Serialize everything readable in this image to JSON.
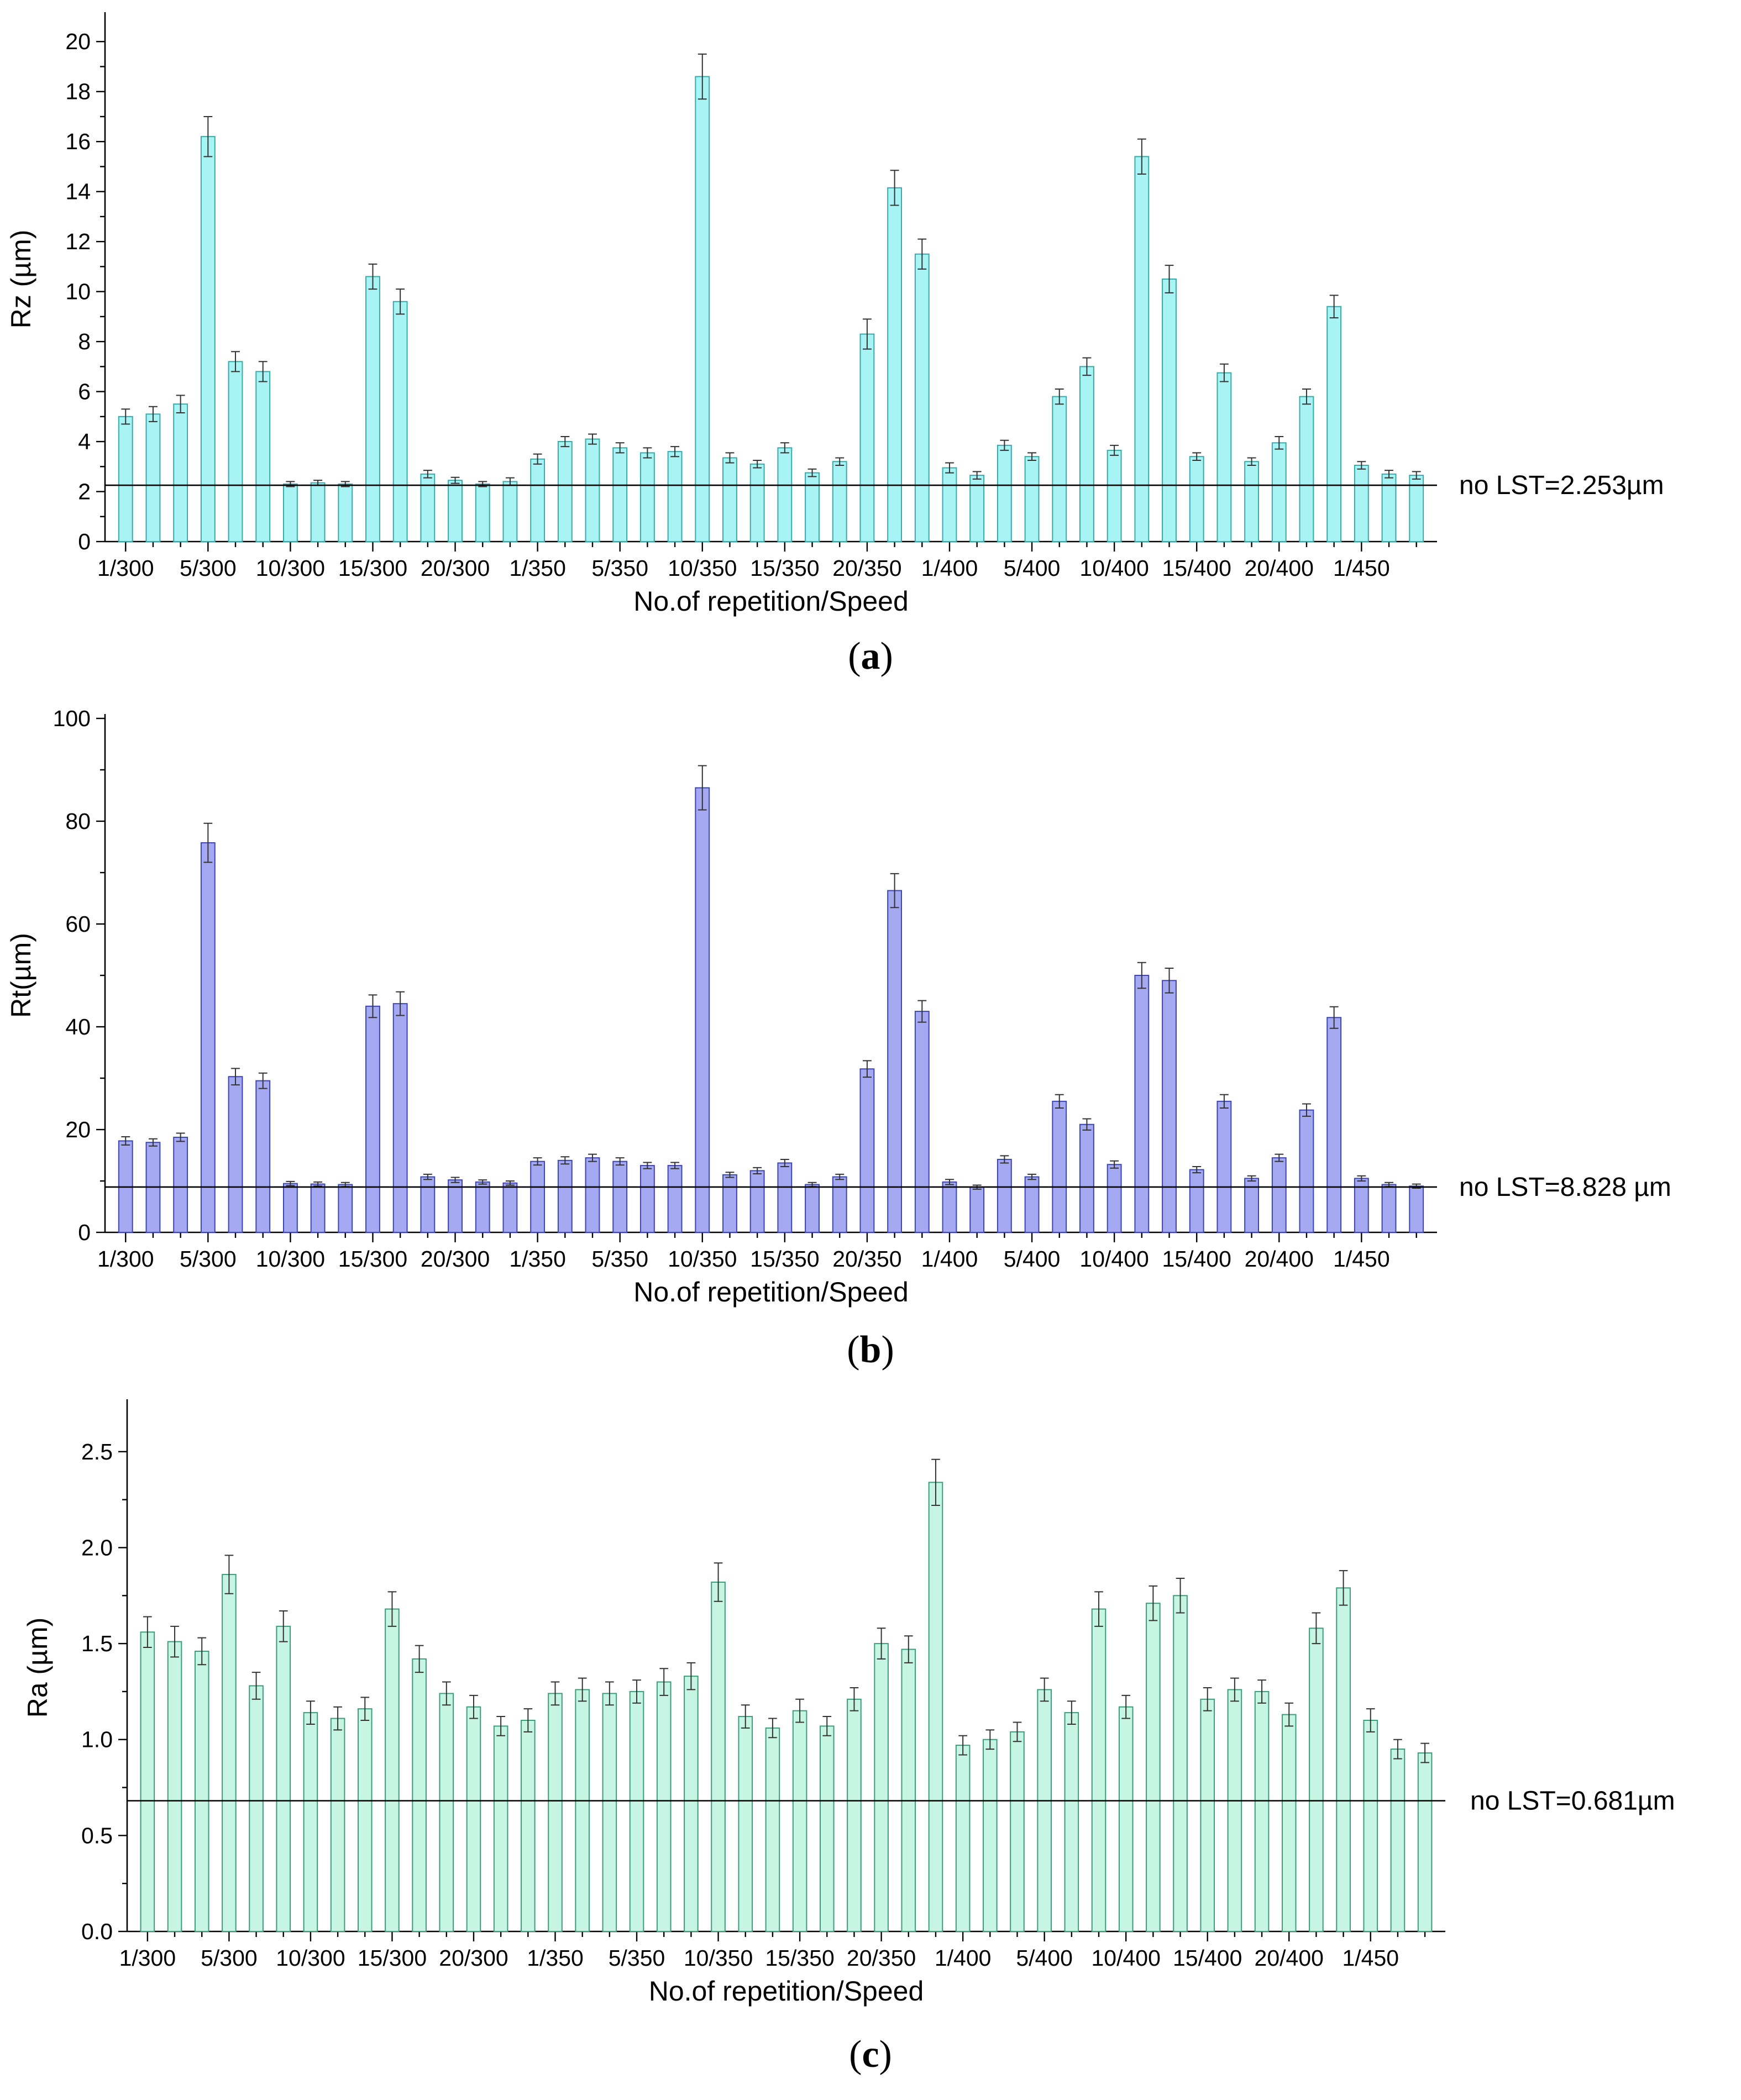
{
  "chart_data": [
    {
      "type": "bar",
      "panel_label": "a",
      "ylabel": "Rz (µm)",
      "xlabel": "No.of repetition/Speed",
      "ylim": [
        0,
        21
      ],
      "yticks": [
        0,
        2,
        4,
        6,
        8,
        10,
        12,
        14,
        16,
        18,
        20
      ],
      "ytick_labels": [
        "0",
        "2",
        "4",
        "6",
        "8",
        "10",
        "12",
        "14",
        "16",
        "18",
        "20"
      ],
      "xtick_labels": [
        "1/300",
        "5/300",
        "10/300",
        "15/300",
        "20/300",
        "1/350",
        "5/350",
        "10/350",
        "15/350",
        "20/350",
        "1/400",
        "5/400",
        "10/400",
        "15/400",
        "20/400",
        "1/450"
      ],
      "reference": {
        "value": 2.253,
        "label": "no LST=2.253µm"
      },
      "colors": {
        "fill": "#a8f4f4",
        "stroke": "#3aa9a9"
      },
      "values": [
        5.0,
        5.1,
        5.5,
        16.2,
        7.2,
        6.8,
        2.3,
        2.35,
        2.3,
        10.6,
        9.6,
        2.7,
        2.45,
        2.3,
        2.4,
        3.3,
        4.0,
        4.1,
        3.75,
        3.55,
        3.6,
        18.6,
        3.35,
        3.1,
        3.75,
        2.75,
        3.2,
        8.3,
        14.15,
        11.5,
        2.95,
        2.65,
        3.85,
        3.4,
        5.8,
        7.0,
        3.65,
        15.4,
        10.5,
        3.4,
        6.75,
        3.2,
        3.95,
        5.8,
        9.4,
        3.05,
        2.7,
        2.65
      ],
      "errors": [
        0.3,
        0.3,
        0.35,
        0.8,
        0.4,
        0.4,
        0.1,
        0.1,
        0.1,
        0.5,
        0.5,
        0.15,
        0.12,
        0.1,
        0.15,
        0.2,
        0.2,
        0.2,
        0.2,
        0.2,
        0.2,
        0.9,
        0.2,
        0.15,
        0.2,
        0.15,
        0.15,
        0.6,
        0.7,
        0.6,
        0.2,
        0.15,
        0.2,
        0.15,
        0.3,
        0.35,
        0.2,
        0.7,
        0.55,
        0.15,
        0.35,
        0.15,
        0.25,
        0.3,
        0.45,
        0.15,
        0.15,
        0.15
      ]
    },
    {
      "type": "bar",
      "panel_label": "b",
      "ylabel": "Rt(µm)",
      "xlabel": "No.of repetition/Speed",
      "ylim": [
        0,
        100
      ],
      "yticks": [
        0,
        20,
        40,
        60,
        80,
        100
      ],
      "ytick_labels": [
        "0",
        "20",
        "40",
        "60",
        "80",
        "100"
      ],
      "xtick_labels": [
        "1/300",
        "5/300",
        "10/300",
        "15/300",
        "20/300",
        "1/350",
        "5/350",
        "10/350",
        "15/350",
        "20/350",
        "1/400",
        "5/400",
        "10/400",
        "15/400",
        "20/400",
        "1/450"
      ],
      "reference": {
        "value": 8.828,
        "label": "no LST=8.828 µm"
      },
      "colors": {
        "fill": "#a4a9f1",
        "stroke": "#3c45b0"
      },
      "values": [
        17.8,
        17.5,
        18.5,
        75.8,
        30.3,
        29.5,
        9.5,
        9.4,
        9.3,
        44.0,
        44.5,
        10.8,
        10.2,
        9.8,
        9.6,
        13.8,
        14.0,
        14.5,
        13.8,
        13.0,
        13.0,
        86.5,
        11.2,
        12.0,
        13.5,
        9.3,
        10.8,
        31.8,
        66.5,
        43.0,
        9.8,
        8.8,
        14.2,
        10.8,
        25.5,
        21.0,
        13.2,
        50.0,
        49.0,
        12.2,
        25.5,
        10.5,
        14.5,
        23.8,
        41.8,
        10.5,
        9.3,
        9.0
      ],
      "errors": [
        0.8,
        0.7,
        0.8,
        3.8,
        1.6,
        1.5,
        0.4,
        0.4,
        0.4,
        2.2,
        2.3,
        0.5,
        0.5,
        0.4,
        0.4,
        0.7,
        0.7,
        0.7,
        0.7,
        0.6,
        0.6,
        4.3,
        0.5,
        0.6,
        0.7,
        0.4,
        0.5,
        1.6,
        3.3,
        2.1,
        0.5,
        0.4,
        0.7,
        0.5,
        1.3,
        1.1,
        0.7,
        2.5,
        2.4,
        0.6,
        1.3,
        0.5,
        0.7,
        1.2,
        2.1,
        0.5,
        0.4,
        0.4
      ]
    },
    {
      "type": "bar",
      "panel_label": "c",
      "ylabel": "Ra (µm)",
      "xlabel": "No.of repetition/Speed",
      "ylim": [
        0,
        2.75
      ],
      "yticks": [
        0,
        0.5,
        1.0,
        1.5,
        2.0,
        2.5
      ],
      "ytick_labels": [
        "0.0",
        "0.5",
        "1.0",
        "1.5",
        "2.0",
        "2.5"
      ],
      "xtick_labels": [
        "1/300",
        "5/300",
        "10/300",
        "15/300",
        "20/300",
        "1/350",
        "5/350",
        "10/350",
        "15/350",
        "20/350",
        "1/400",
        "5/400",
        "10/400",
        "15/400",
        "20/400",
        "1/450"
      ],
      "reference": {
        "value": 0.681,
        "label": "no LST=0.681µm"
      },
      "colors": {
        "fill": "#c6f5e3",
        "stroke": "#3c9c7c"
      },
      "values": [
        1.56,
        1.51,
        1.46,
        1.86,
        1.28,
        1.59,
        1.14,
        1.11,
        1.16,
        1.68,
        1.42,
        1.24,
        1.17,
        1.07,
        1.1,
        1.24,
        1.26,
        1.24,
        1.25,
        1.3,
        1.33,
        1.82,
        1.12,
        1.06,
        1.15,
        1.07,
        1.21,
        1.5,
        1.47,
        2.34,
        0.97,
        1.0,
        1.04,
        1.26,
        1.14,
        1.68,
        1.17,
        1.71,
        1.75,
        1.21,
        1.26,
        1.25,
        1.13,
        1.58,
        1.79,
        1.1,
        0.95,
        0.93
      ],
      "errors": [
        0.08,
        0.08,
        0.07,
        0.1,
        0.07,
        0.08,
        0.06,
        0.06,
        0.06,
        0.09,
        0.07,
        0.06,
        0.06,
        0.05,
        0.06,
        0.06,
        0.06,
        0.06,
        0.06,
        0.07,
        0.07,
        0.1,
        0.06,
        0.05,
        0.06,
        0.05,
        0.06,
        0.08,
        0.07,
        0.12,
        0.05,
        0.05,
        0.05,
        0.06,
        0.06,
        0.09,
        0.06,
        0.09,
        0.09,
        0.06,
        0.06,
        0.06,
        0.06,
        0.08,
        0.09,
        0.06,
        0.05,
        0.05
      ]
    }
  ]
}
